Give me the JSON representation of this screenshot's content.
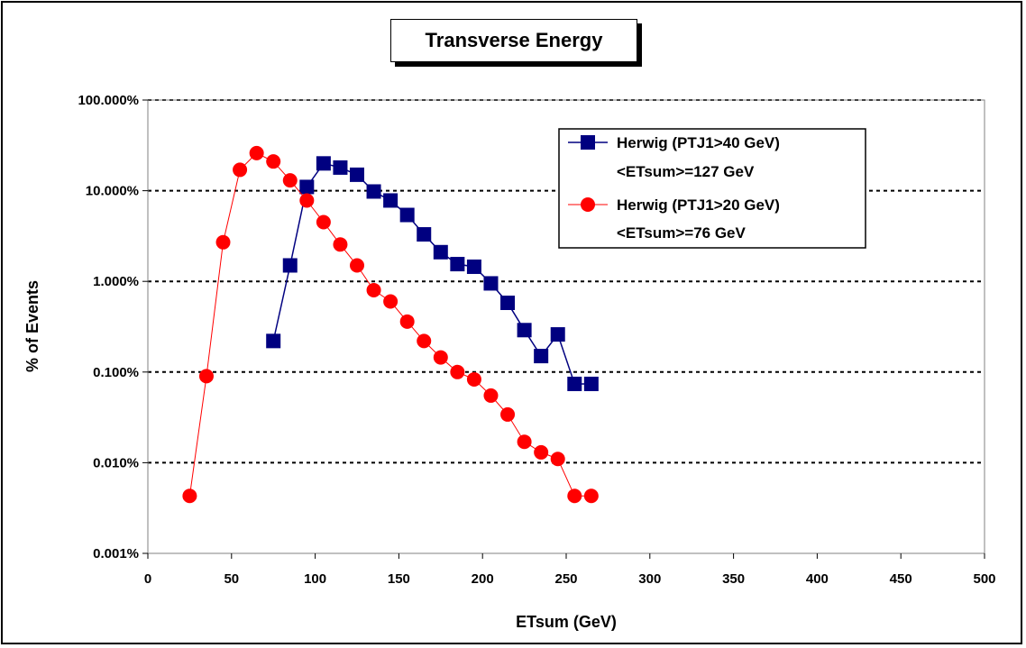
{
  "chart_data": {
    "type": "line",
    "title": "Transverse Energy",
    "xlabel": "ETsum (GeV)",
    "ylabel": "% of Events",
    "xlim": [
      0,
      500
    ],
    "ylim": [
      0.001,
      100
    ],
    "yscale": "log",
    "xticks": [
      "0",
      "50",
      "100",
      "150",
      "200",
      "250",
      "300",
      "350",
      "400",
      "450",
      "500"
    ],
    "yticks": [
      "0.001%",
      "0.010%",
      "0.100%",
      "1.000%",
      "10.000%",
      "100.000%"
    ],
    "grid": "horizontal dotted",
    "legend_position": "top-right",
    "series": [
      {
        "name": "Herwig (PTJ1>40 GeV)",
        "name_line2": "<ETsum>=127 GeV",
        "color": "#000080",
        "marker": "square",
        "x": [
          75,
          85,
          95,
          105,
          115,
          125,
          135,
          145,
          155,
          165,
          175,
          185,
          195,
          205,
          215,
          225,
          235,
          245,
          255,
          265
        ],
        "y": [
          0.22,
          1.5,
          11,
          20,
          18,
          15,
          9.8,
          7.8,
          5.4,
          3.3,
          2.1,
          1.55,
          1.45,
          0.95,
          0.58,
          0.29,
          0.15,
          0.26,
          0.074,
          0.074
        ]
      },
      {
        "name": "Herwig (PTJ1>20 GeV)",
        "name_line2": "<ETsum>=76 GeV",
        "color": "#ff0000",
        "marker": "circle",
        "x": [
          25,
          35,
          45,
          55,
          65,
          75,
          85,
          95,
          105,
          115,
          125,
          135,
          145,
          155,
          165,
          175,
          185,
          195,
          205,
          215,
          225,
          235,
          245,
          255,
          265
        ],
        "y": [
          0.0043,
          0.09,
          2.7,
          17,
          26,
          21,
          13,
          7.8,
          4.5,
          2.55,
          1.5,
          0.8,
          0.6,
          0.36,
          0.22,
          0.145,
          0.1,
          0.083,
          0.055,
          0.034,
          0.017,
          0.013,
          0.011,
          0.0043,
          0.0043
        ]
      }
    ]
  }
}
